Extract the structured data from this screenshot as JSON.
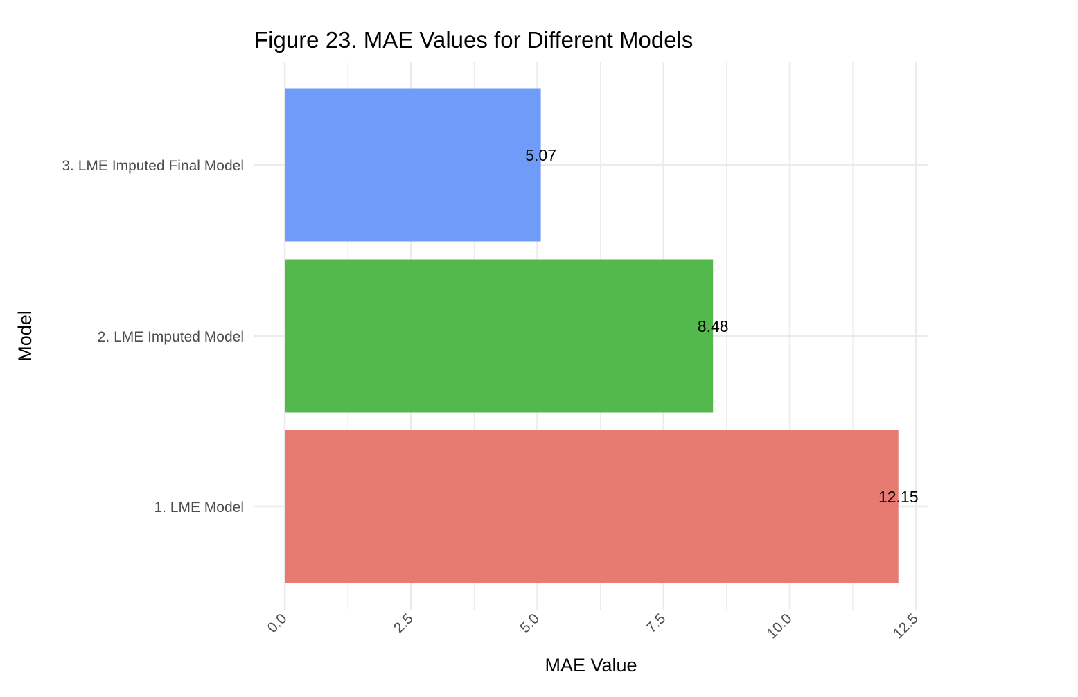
{
  "chart_data": {
    "type": "bar",
    "orientation": "horizontal",
    "title": "Figure 23. MAE Values for Different Models",
    "xlabel": "MAE Value",
    "ylabel": "Model",
    "categories": [
      "1. LME Model",
      "2. LME Imputed Model",
      "3. LME Imputed Final Model"
    ],
    "values": [
      12.15,
      8.48,
      5.07
    ],
    "value_labels": [
      "12.15",
      "8.48",
      "5.07"
    ],
    "colors": [
      "#e77b73",
      "#53b94c",
      "#6e9cf8"
    ],
    "xlim": [
      0,
      12.75
    ],
    "x_ticks": [
      0,
      2.5,
      5,
      7.5,
      10,
      12.5
    ],
    "x_tick_labels": [
      "0.0",
      "2.5",
      "5.0",
      "7.5",
      "10.0",
      "12.5"
    ],
    "x_tick_label_rotation": "45 degrees",
    "grid": true,
    "legend": "none"
  }
}
